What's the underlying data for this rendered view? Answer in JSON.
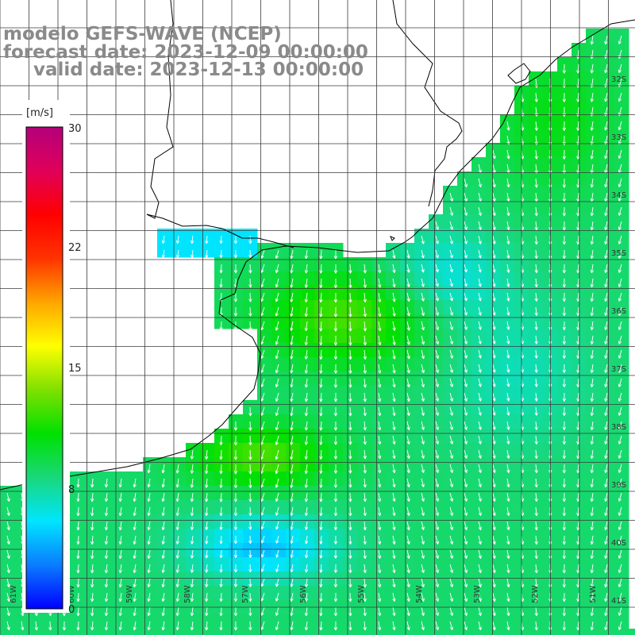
{
  "title": {
    "line1": "modelo GEFS-WAVE (NCEP)",
    "line2": "forecast date: 2023-12-09 00:00:00",
    "line3": "valid date: 2023-12-13 00:00:00"
  },
  "colorbar": {
    "unit": "[m/s]",
    "ticks": [
      "30",
      "22",
      "15",
      "8",
      "0"
    ],
    "stops": [
      "#0000ff",
      "#0a7cff",
      "#00e5ff",
      "#19d87a",
      "#00e000",
      "#7fe000",
      "#ffff00",
      "#ffa500",
      "#ff3300",
      "#ff0000",
      "#e0005a",
      "#b4007a"
    ]
  },
  "lat_labels": [
    "32S",
    "33S",
    "34S",
    "35S",
    "36S",
    "37S",
    "38S",
    "39S",
    "40S",
    "41S"
  ],
  "lon_labels": [
    "61W",
    "60W",
    "59W",
    "58W",
    "57W",
    "56W",
    "55W",
    "54W",
    "53W",
    "52W",
    "51W"
  ],
  "colors": {
    "land": "#ffffff",
    "coast": "#000000",
    "grid": "#3a3a3a",
    "arrow": "#ffffff"
  }
}
